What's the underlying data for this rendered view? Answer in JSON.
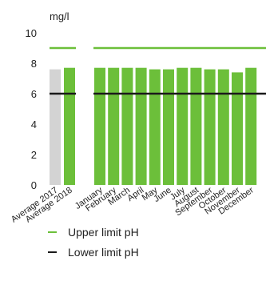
{
  "chart_data": {
    "type": "bar",
    "unit_label": "mg/l",
    "categories": [
      "Average 2017",
      "Average 2018",
      "January",
      "February",
      "March",
      "April",
      "May",
      "June",
      "July",
      "August",
      "September",
      "October",
      "November",
      "December"
    ],
    "values": [
      7.6,
      7.7,
      7.7,
      7.7,
      7.7,
      7.7,
      7.6,
      7.6,
      7.7,
      7.7,
      7.6,
      7.6,
      7.4,
      7.7
    ],
    "bar_colors": [
      "#d3d3d3",
      "#6cbf3a",
      "#6cbf3a",
      "#6cbf3a",
      "#6cbf3a",
      "#6cbf3a",
      "#6cbf3a",
      "#6cbf3a",
      "#6cbf3a",
      "#6cbf3a",
      "#6cbf3a",
      "#6cbf3a",
      "#6cbf3a",
      "#6cbf3a"
    ],
    "ylim": [
      0,
      10
    ],
    "yticks": [
      "0",
      "2",
      "4",
      "6",
      "8",
      "10"
    ],
    "reference_lines": [
      {
        "name": "Upper limit pH",
        "value": 9,
        "color": "#6cbf3a"
      },
      {
        "name": "Lower limit pH",
        "value": 6,
        "color": "#1a1a1a"
      }
    ],
    "grid": false,
    "legend_position": "bottom"
  }
}
